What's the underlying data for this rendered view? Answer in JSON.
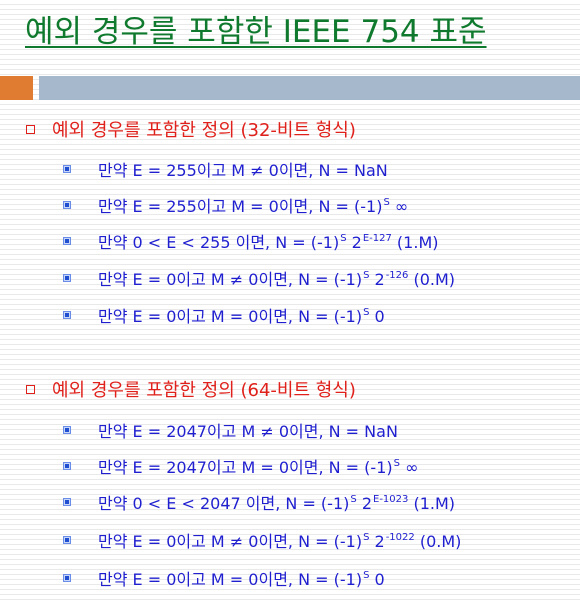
{
  "title": "예외 경우를 포함한 IEEE 754 표준",
  "sections": [
    {
      "heading": "예외 경우를 포함한 정의 (32-비트 형식)",
      "items": [
        {
          "pre": "만약 E = 255이고 M ≠ 0이면, N = NaN",
          "sup1": "",
          "mid": "",
          "sup2": "",
          "post": ""
        },
        {
          "pre": "만약 E = 255이고 M = 0이면, N = (-1)",
          "sup1": "S",
          "mid": " ∞",
          "sup2": "",
          "post": ""
        },
        {
          "pre": "만약 0 < E < 255 이면, N = (-1)",
          "sup1": "S",
          "mid": " 2",
          "sup2": "E-127",
          "post": " (1.M)"
        },
        {
          "pre": "만약 E = 0이고 M ≠ 0이면, N = (-1)",
          "sup1": "S",
          "mid": " 2",
          "sup2": "-126",
          "post": " (0.M)"
        },
        {
          "pre": "만약 E = 0이고 M = 0이면, N = (-1)",
          "sup1": "S",
          "mid": " 0",
          "sup2": "",
          "post": ""
        }
      ]
    },
    {
      "heading": "예외 경우를 포함한 정의 (64-비트 형식)",
      "items": [
        {
          "pre": "만약 E = 2047이고 M ≠ 0이면, N = NaN",
          "sup1": "",
          "mid": "",
          "sup2": "",
          "post": ""
        },
        {
          "pre": "만약 E = 2047이고 M = 0이면, N = (-1)",
          "sup1": "S",
          "mid": " ∞",
          "sup2": "",
          "post": ""
        },
        {
          "pre": "만약 0 < E < 2047 이면, N = (-1)",
          "sup1": "S",
          "mid": " 2",
          "sup2": "E-1023",
          "post": " (1.M)"
        },
        {
          "pre": "만약 E = 0이고 M ≠ 0이면, N = (-1)",
          "sup1": "S",
          "mid": " 2",
          "sup2": "-1022",
          "post": " (0.M)"
        },
        {
          "pre": "만약 E = 0이고 M = 0이면, N = (-1)",
          "sup1": "S",
          "mid": " 0",
          "sup2": "",
          "post": ""
        }
      ]
    }
  ],
  "colors": {
    "title": "#0f7a2e",
    "heading": "#e0201a",
    "item_text": "#1f1fd0",
    "bar_accent": "#e07b32",
    "bar_main": "#a6b8cc"
  }
}
